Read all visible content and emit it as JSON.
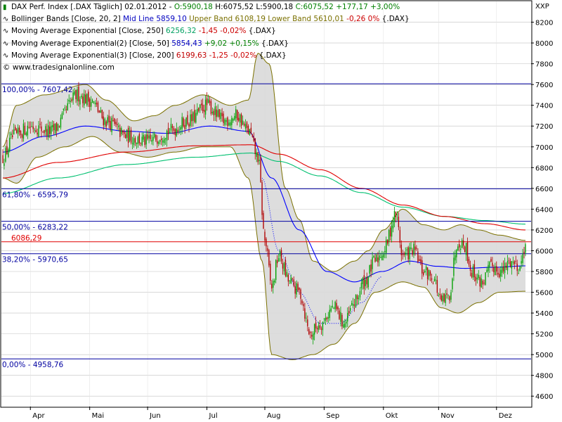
{
  "header": {
    "title": "DAX Perf. Index [.DAX  Täglich] 02.01.2012",
    "quote_open": "O:5900,18",
    "quote_high": "H:6075,52",
    "quote_low": "L:5900,18",
    "quote_close": "C:6075,52",
    "quote_change": "+177,17 +3,00%",
    "top_right_label": "XXP"
  },
  "legend": [
    {
      "name": "Bollinger Bands [Close, 20, 2]",
      "parts": [
        {
          "text": "Mid Line 5859,10",
          "color": "blue"
        },
        {
          "text": "Upper Band 6108,19",
          "color": "olive"
        },
        {
          "text": "Lower Band 5610,01",
          "color": "olive"
        },
        {
          "text": "-0,26 0%",
          "color": "red"
        },
        {
          "text": "{.DAX}",
          "color": "black"
        }
      ]
    },
    {
      "name": "Moving Average Exponential [Close, 250]",
      "parts": [
        {
          "text": "6256,32",
          "color": "teal"
        },
        {
          "text": "-1,45 -0,02%",
          "color": "red"
        },
        {
          "text": "{.DAX}",
          "color": "black"
        }
      ]
    },
    {
      "name": "Moving Average Exponential(2) [Close, 50]",
      "parts": [
        {
          "text": "5854,43",
          "color": "blue"
        },
        {
          "text": "+9,02 +0,15%",
          "color": "green"
        },
        {
          "text": "{.DAX}",
          "color": "black"
        }
      ]
    },
    {
      "name": "Moving Average Exponential(3) [Close, 200]",
      "parts": [
        {
          "text": "6199,63",
          "color": "crimson"
        },
        {
          "text": "-1,25 -0,02%",
          "color": "red"
        },
        {
          "text": "{.DAX}",
          "color": "black"
        }
      ]
    }
  ],
  "copyright": "© www.tradesignalonline.com",
  "colors": {
    "up_candle": "#00a000",
    "down_candle": "#b00000",
    "band_fill": "#d9d9d9",
    "band_line": "#7a7000",
    "mid_line": "#0000c0",
    "ema250": "#00c070",
    "ema50": "#0000ff",
    "ema200": "#e00000",
    "fib_line": "#0000a0",
    "close_line": "#e00000",
    "grid": "#c0c0c0"
  },
  "chart_data": {
    "type": "candlestick",
    "ylim": [
      4500,
      8400
    ],
    "y_ticks": [
      4600,
      4800,
      5000,
      5200,
      5400,
      5600,
      5800,
      6000,
      6200,
      6400,
      6600,
      6800,
      7000,
      7200,
      7400,
      7600,
      7800,
      8000,
      8200
    ],
    "y_tick_labels": [
      "4600",
      "4800",
      "5000",
      "5200",
      "5400",
      "5600",
      "5800",
      "6000",
      "6200",
      "6400",
      "6600",
      "6800",
      "7000",
      "7200",
      "7400",
      "7600",
      "7800",
      "8000",
      "8200"
    ],
    "x_labels": [
      "Apr",
      "Mai",
      "Jun",
      "Jul",
      "Aug",
      "Sep",
      "Okt",
      "Nov",
      "Dez"
    ],
    "x_label_positions": [
      20,
      63,
      105,
      148,
      190,
      233,
      276,
      316,
      358
    ],
    "n_bars": 380,
    "fib_levels": [
      {
        "label": "100,00% - 7607,42",
        "value": 7607
      },
      {
        "label": "61,80% - 6595,79",
        "value": 6596
      },
      {
        "label": "50,00% - 6283,22",
        "value": 6283
      },
      {
        "label": "38,20% - 5970,65",
        "value": 5971
      },
      {
        "label": "0,00% - 4958,76",
        "value": 4959
      }
    ],
    "horizontal_level": {
      "label": "6086,29",
      "value": 6086
    },
    "close_anchors": [
      [
        0,
        6900
      ],
      [
        8,
        7100
      ],
      [
        20,
        7200
      ],
      [
        35,
        7150
      ],
      [
        55,
        7500
      ],
      [
        63,
        7450
      ],
      [
        75,
        7250
      ],
      [
        90,
        7100
      ],
      [
        105,
        7050
      ],
      [
        120,
        7150
      ],
      [
        135,
        7250
      ],
      [
        148,
        7400
      ],
      [
        160,
        7250
      ],
      [
        170,
        7300
      ],
      [
        178,
        7150
      ],
      [
        185,
        6900
      ],
      [
        190,
        6100
      ],
      [
        195,
        5650
      ],
      [
        200,
        5950
      ],
      [
        208,
        5700
      ],
      [
        215,
        5600
      ],
      [
        223,
        5200
      ],
      [
        230,
        5300
      ],
      [
        240,
        5450
      ],
      [
        248,
        5300
      ],
      [
        255,
        5500
      ],
      [
        262,
        5700
      ],
      [
        270,
        5900
      ],
      [
        276,
        6000
      ],
      [
        285,
        6350
      ],
      [
        290,
        5950
      ],
      [
        298,
        6000
      ],
      [
        305,
        5800
      ],
      [
        312,
        5750
      ],
      [
        318,
        5500
      ],
      [
        323,
        5550
      ],
      [
        330,
        6100
      ],
      [
        335,
        6050
      ],
      [
        340,
        5800
      ],
      [
        347,
        5700
      ],
      [
        355,
        5850
      ],
      [
        362,
        5800
      ],
      [
        368,
        5900
      ],
      [
        375,
        5850
      ],
      [
        379,
        6075
      ]
    ],
    "bollinger": {
      "upper": [
        [
          0,
          7000
        ],
        [
          10,
          7400
        ],
        [
          30,
          7500
        ],
        [
          60,
          7600
        ],
        [
          75,
          7450
        ],
        [
          95,
          7250
        ],
        [
          110,
          7300
        ],
        [
          125,
          7400
        ],
        [
          145,
          7500
        ],
        [
          165,
          7400
        ],
        [
          178,
          7450
        ],
        [
          185,
          7900
        ],
        [
          193,
          7800
        ],
        [
          205,
          6600
        ],
        [
          215,
          6300
        ],
        [
          225,
          5900
        ],
        [
          240,
          5800
        ],
        [
          255,
          5900
        ],
        [
          265,
          6000
        ],
        [
          276,
          6200
        ],
        [
          290,
          6400
        ],
        [
          305,
          6250
        ],
        [
          320,
          6200
        ],
        [
          332,
          6250
        ],
        [
          345,
          6200
        ],
        [
          360,
          6150
        ],
        [
          379,
          6100
        ]
      ],
      "lower": [
        [
          0,
          6700
        ],
        [
          10,
          6650
        ],
        [
          25,
          6900
        ],
        [
          45,
          7000
        ],
        [
          65,
          7100
        ],
        [
          85,
          6950
        ],
        [
          105,
          6900
        ],
        [
          125,
          6950
        ],
        [
          145,
          7000
        ],
        [
          165,
          7000
        ],
        [
          178,
          6700
        ],
        [
          188,
          5900
        ],
        [
          195,
          5000
        ],
        [
          210,
          4950
        ],
        [
          225,
          5000
        ],
        [
          240,
          5100
        ],
        [
          255,
          5300
        ],
        [
          270,
          5600
        ],
        [
          290,
          5700
        ],
        [
          305,
          5650
        ],
        [
          318,
          5450
        ],
        [
          330,
          5400
        ],
        [
          345,
          5500
        ],
        [
          360,
          5600
        ],
        [
          379,
          5610
        ]
      ],
      "mid": [
        [
          0,
          6850
        ],
        [
          10,
          7050
        ],
        [
          30,
          7200
        ],
        [
          60,
          7350
        ],
        [
          80,
          7250
        ],
        [
          100,
          7150
        ],
        [
          120,
          7150
        ],
        [
          140,
          7250
        ],
        [
          160,
          7250
        ],
        [
          175,
          7200
        ],
        [
          185,
          7000
        ],
        [
          195,
          6500
        ],
        [
          205,
          6000
        ],
        [
          220,
          5600
        ],
        [
          240,
          5450
        ],
        [
          255,
          5550
        ],
        [
          270,
          5750
        ],
        [
          290,
          5900
        ],
        [
          305,
          5850
        ],
        [
          320,
          5750
        ],
        [
          335,
          5800
        ],
        [
          350,
          5850
        ],
        [
          379,
          5860
        ]
      ]
    },
    "ema250": [
      [
        0,
        6550
      ],
      [
        40,
        6700
      ],
      [
        90,
        6830
      ],
      [
        140,
        6900
      ],
      [
        180,
        6940
      ],
      [
        200,
        6860
      ],
      [
        230,
        6720
      ],
      [
        260,
        6560
      ],
      [
        290,
        6420
      ],
      [
        320,
        6330
      ],
      [
        350,
        6290
      ],
      [
        379,
        6256
      ]
    ],
    "ema50": [
      [
        0,
        6950
      ],
      [
        30,
        7100
      ],
      [
        60,
        7200
      ],
      [
        90,
        7150
      ],
      [
        120,
        7130
      ],
      [
        150,
        7200
      ],
      [
        178,
        7150
      ],
      [
        195,
        6700
      ],
      [
        215,
        6200
      ],
      [
        235,
        5800
      ],
      [
        255,
        5700
      ],
      [
        275,
        5800
      ],
      [
        295,
        5900
      ],
      [
        315,
        5850
      ],
      [
        335,
        5830
      ],
      [
        355,
        5840
      ],
      [
        379,
        5854
      ]
    ],
    "ema200": [
      [
        0,
        6700
      ],
      [
        40,
        6850
      ],
      [
        90,
        6950
      ],
      [
        140,
        7010
      ],
      [
        180,
        7020
      ],
      [
        200,
        6930
      ],
      [
        230,
        6780
      ],
      [
        260,
        6600
      ],
      [
        290,
        6440
      ],
      [
        320,
        6330
      ],
      [
        350,
        6260
      ],
      [
        379,
        6200
      ]
    ],
    "ema_dotted": [
      [
        188,
        6700
      ],
      [
        200,
        6000
      ],
      [
        215,
        5600
      ],
      [
        230,
        5300
      ],
      [
        245,
        5300
      ],
      [
        260,
        5500
      ],
      [
        275,
        5750
      ]
    ]
  }
}
